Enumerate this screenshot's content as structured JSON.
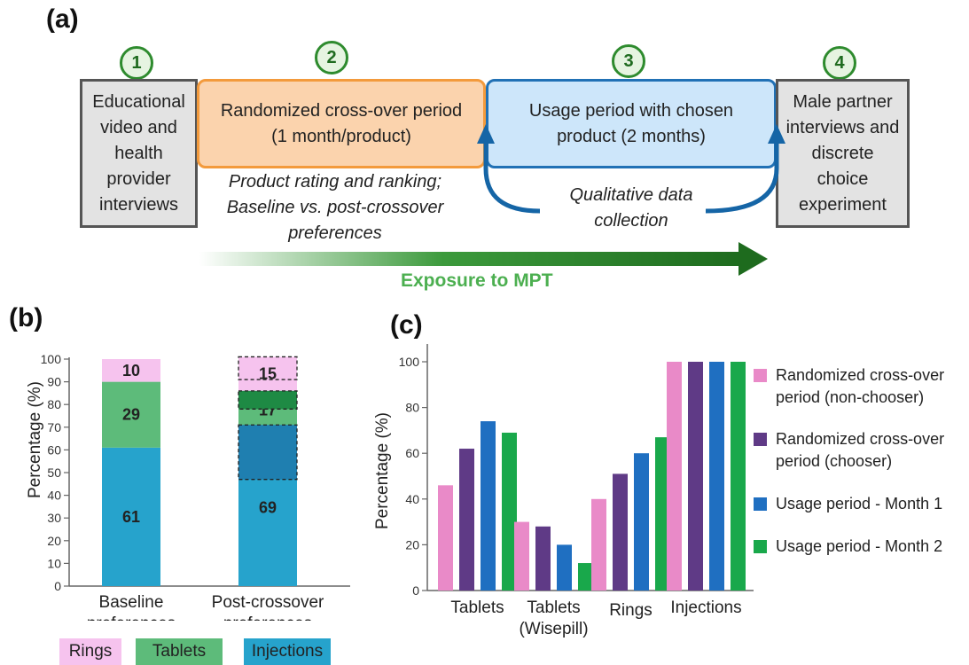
{
  "panel_a": {
    "label": "(a)",
    "stages": [
      {
        "num": "1",
        "text": "Educational video and health provider interviews"
      },
      {
        "num": "2",
        "text": "Randomized cross-over period (1 month/product)"
      },
      {
        "num": "3",
        "text": "Usage period with chosen product (2 months)"
      },
      {
        "num": "4",
        "text": "Male partner interviews and discrete choice experiment"
      }
    ],
    "note_crossover": "Product rating and ranking; Baseline vs. post-crossover preferences",
    "note_usage": "Qualitative data collection",
    "exposure_label": "Exposure to MPT",
    "colors": {
      "gray": "#e3e3e3",
      "orange": "#fbd3ad",
      "blue": "#cde6fa",
      "exposure": "#1e6b1e"
    }
  },
  "panel_b": {
    "label": "(b)",
    "legend": [
      {
        "name": "Rings",
        "color": "#f6c3ee"
      },
      {
        "name": "Tablets",
        "color": "#5dbb7a"
      },
      {
        "name": "Injections",
        "color": "#26a3cc"
      }
    ]
  },
  "panel_c": {
    "label": "(c)",
    "legend": [
      {
        "name": "Randomized cross-over period (non-chooser)",
        "color": "#e98ac8"
      },
      {
        "name": "Randomized cross-over period (chooser)",
        "color": "#5f3a86"
      },
      {
        "name": "Usage period - Month 1",
        "color": "#1f6fc1"
      },
      {
        "name": "Usage period - Month 2",
        "color": "#19a84b"
      }
    ]
  },
  "chart_data": [
    {
      "type": "bar",
      "stacked": true,
      "ylabel": "Percentage (%)",
      "ylim": [
        0,
        100
      ],
      "yticks": [
        0,
        10,
        20,
        30,
        40,
        50,
        60,
        70,
        80,
        90,
        100
      ],
      "categories": [
        "Baseline preferences",
        "Post-crossover preferences"
      ],
      "series": [
        {
          "name": "Injections",
          "values": [
            61,
            69
          ],
          "color": "#26a3cc"
        },
        {
          "name": "Tablets",
          "values": [
            29,
            17
          ],
          "color": "#5dbb7a"
        },
        {
          "name": "Rings",
          "values": [
            10,
            15
          ],
          "color": "#f6c3ee"
        }
      ],
      "labels": {
        "Injections": [
          "61",
          "69"
        ],
        "Tablets": [
          "29",
          "17"
        ],
        "Rings": [
          "10",
          "15"
        ]
      }
    },
    {
      "type": "bar",
      "ylabel": "Percentage (%)",
      "ylim": [
        0,
        100
      ],
      "yticks": [
        0,
        20,
        40,
        60,
        80,
        100
      ],
      "categories": [
        "Tablets",
        "Tablets (Wisepill)",
        "Rings",
        "Injections"
      ],
      "series": [
        {
          "name": "Randomized cross-over period (non-chooser)",
          "values": [
            46,
            30,
            40,
            100
          ],
          "color": "#e98ac8"
        },
        {
          "name": "Randomized cross-over period (chooser)",
          "values": [
            62,
            28,
            51,
            100
          ],
          "color": "#5f3a86"
        },
        {
          "name": "Usage period - Month 1",
          "values": [
            74,
            20,
            60,
            100
          ],
          "color": "#1f6fc1"
        },
        {
          "name": "Usage period - Month 2",
          "values": [
            69,
            12,
            67,
            100
          ],
          "color": "#19a84b"
        }
      ]
    }
  ]
}
